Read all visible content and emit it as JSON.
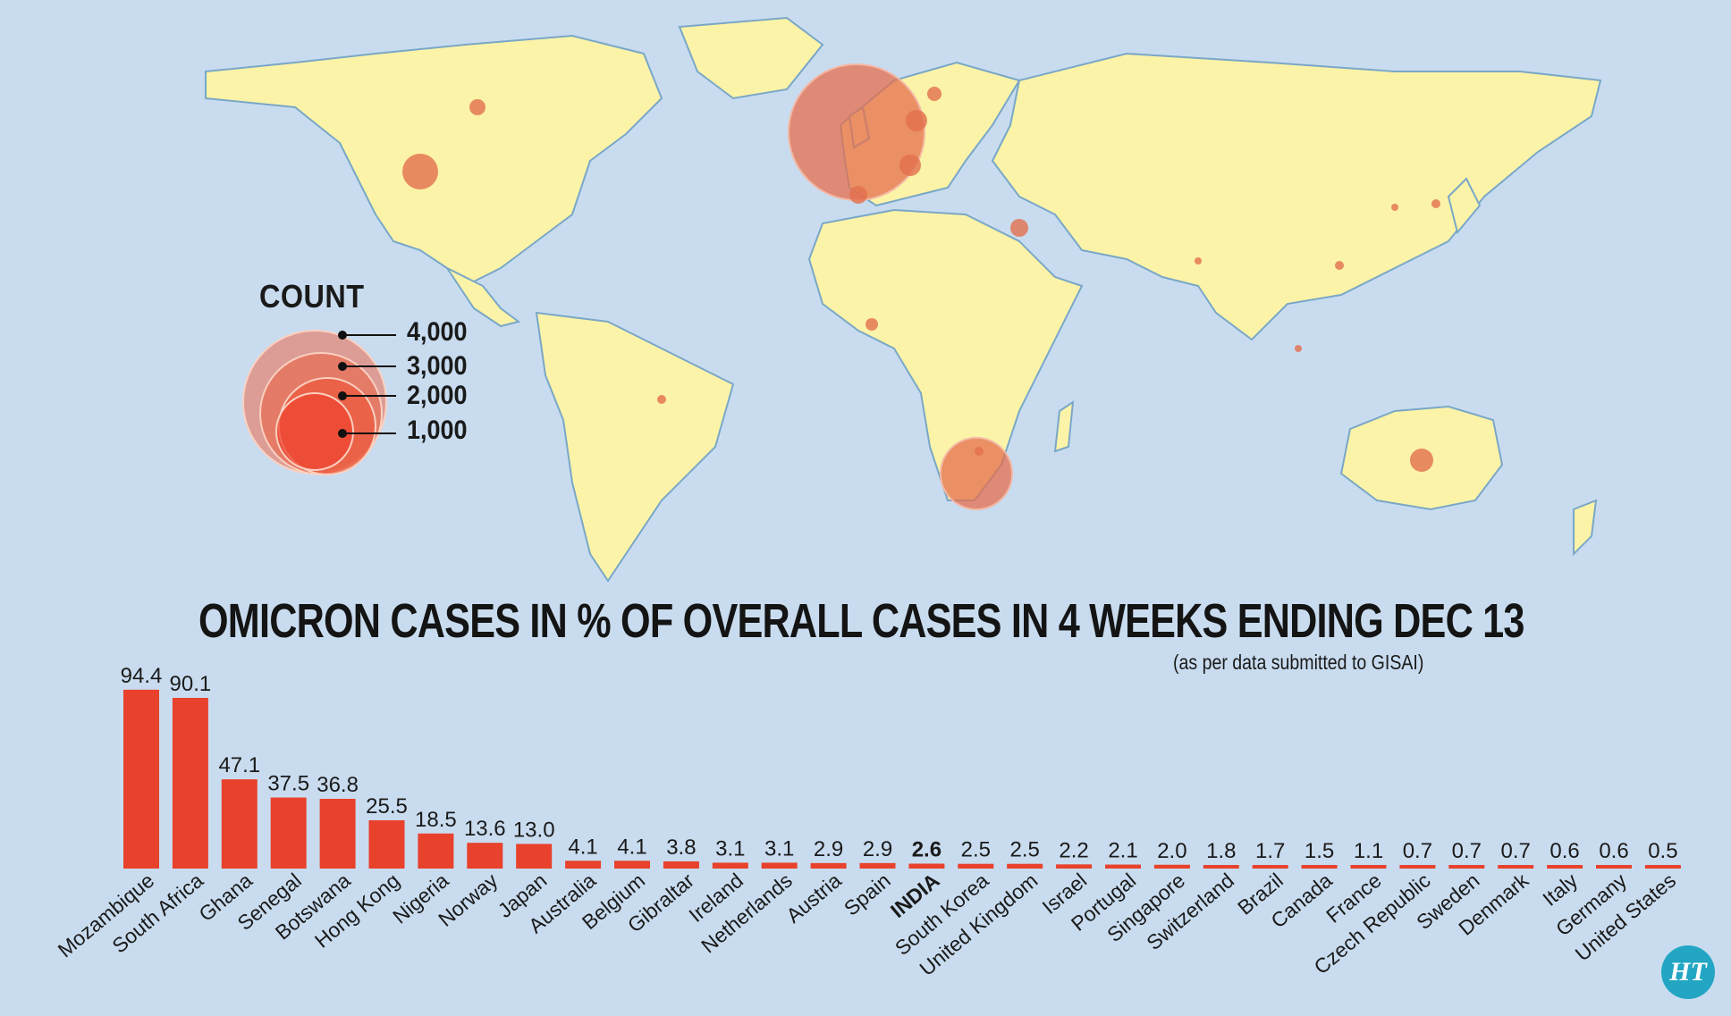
{
  "map": {
    "legend": {
      "title": "COUNT",
      "labels": [
        "4,000",
        "3,000",
        "2,000",
        "1,000"
      ]
    }
  },
  "chart_data": {
    "type": "bar",
    "title": "OMICRON CASES IN % OF OVERALL CASES IN 4 WEEKS ENDING DEC 13",
    "subtitle": "(as per data submitted to GISAI)",
    "categories": [
      "Mozambique",
      "South Africa",
      "Ghana",
      "Senegal",
      "Botswana",
      "Hong Kong",
      "Nigeria",
      "Norway",
      "Japan",
      "Australia",
      "Belgium",
      "Gibraltar",
      "Ireland",
      "Netherlands",
      "Austria",
      "Spain",
      "INDIA",
      "South Korea",
      "United Kingdom",
      "Israel",
      "Portugal",
      "Singapore",
      "Switzerland",
      "Brazil",
      "Canada",
      "France",
      "Czech Republic",
      "Sweden",
      "Denmark",
      "Italy",
      "Germany",
      "United States"
    ],
    "values": [
      94.4,
      90.1,
      47.1,
      37.5,
      36.8,
      25.5,
      18.5,
      13.6,
      13.0,
      4.1,
      4.1,
      3.8,
      3.1,
      3.1,
      2.9,
      2.9,
      2.6,
      2.5,
      2.5,
      2.2,
      2.1,
      2.0,
      1.8,
      1.7,
      1.5,
      1.1,
      0.7,
      0.7,
      0.7,
      0.6,
      0.6,
      0.5
    ],
    "value_labels": [
      "94.4",
      "90.1",
      "47.1",
      "37.5",
      "36.8",
      "25.5",
      "18.5",
      "13.6",
      "13.0",
      "4.1",
      "4.1",
      "3.8",
      "3.1",
      "3.1",
      "2.9",
      "2.9",
      "2.6",
      "2.5",
      "2.5",
      "2.2",
      "2.1",
      "2.0",
      "1.8",
      "1.7",
      "1.5",
      "1.1",
      "0.7",
      "0.7",
      "0.7",
      "0.6",
      "0.6",
      "0.5"
    ],
    "highlight": "INDIA",
    "bar_color": "#e8412c",
    "ylim": [
      0,
      100
    ]
  },
  "logo": {
    "text": "HT"
  }
}
